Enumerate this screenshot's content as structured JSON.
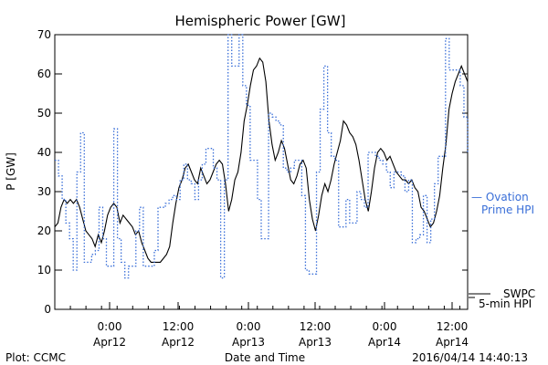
{
  "chart_data": {
    "type": "line",
    "title": "Hemispheric Power [GW]",
    "ylabel": "P [GW]",
    "xlabel": "Date and Time",
    "ylim": [
      0,
      70
    ],
    "xlim": [
      0,
      270
    ],
    "yticks": [
      0,
      10,
      20,
      30,
      40,
      50,
      60,
      70
    ],
    "xticks": [
      {
        "x": 24,
        "time": "0:00",
        "date": "Apr12"
      },
      {
        "x": 48,
        "time": "12:00",
        "date": "Apr12"
      },
      {
        "x": 72,
        "time": "0:00",
        "date": "Apr13"
      },
      {
        "x": 96,
        "time": "12:00",
        "date": "Apr13"
      },
      {
        "x": 120,
        "time": "0:00",
        "date": "Apr14"
      },
      {
        "x": 144,
        "time": "12:00",
        "date": "Apr14"
      }
    ],
    "series": [
      {
        "name": "SWPC 5-min HPI",
        "style": "solid",
        "color": "#000000",
        "points": [
          [
            0,
            21
          ],
          [
            1,
            22
          ],
          [
            2,
            26
          ],
          [
            3,
            28
          ],
          [
            4,
            27
          ],
          [
            5,
            28
          ],
          [
            6,
            27
          ],
          [
            7,
            28
          ],
          [
            8,
            26
          ],
          [
            9,
            23
          ],
          [
            10,
            20
          ],
          [
            11,
            19
          ],
          [
            12,
            18
          ],
          [
            13,
            16
          ],
          [
            14,
            19
          ],
          [
            15,
            17
          ],
          [
            16,
            20
          ],
          [
            17,
            24
          ],
          [
            18,
            26
          ],
          [
            19,
            27
          ],
          [
            20,
            26
          ],
          [
            21,
            22
          ],
          [
            22,
            24
          ],
          [
            23,
            23
          ],
          [
            24,
            22
          ],
          [
            25,
            21
          ],
          [
            26,
            19
          ],
          [
            27,
            20
          ],
          [
            28,
            17
          ],
          [
            29,
            15
          ],
          [
            30,
            13
          ],
          [
            31,
            12
          ],
          [
            32,
            12
          ],
          [
            33,
            12
          ],
          [
            34,
            12
          ],
          [
            35,
            13
          ],
          [
            36,
            14
          ],
          [
            37,
            16
          ],
          [
            38,
            22
          ],
          [
            39,
            27
          ],
          [
            40,
            31
          ],
          [
            41,
            33
          ],
          [
            42,
            36
          ],
          [
            43,
            37
          ],
          [
            44,
            35
          ],
          [
            45,
            33
          ],
          [
            46,
            32
          ],
          [
            47,
            36
          ],
          [
            48,
            34
          ],
          [
            49,
            32
          ],
          [
            50,
            33
          ],
          [
            51,
            35
          ],
          [
            52,
            37
          ],
          [
            53,
            38
          ],
          [
            54,
            37
          ],
          [
            55,
            32
          ],
          [
            56,
            25
          ],
          [
            57,
            28
          ],
          [
            58,
            33
          ],
          [
            59,
            35
          ],
          [
            60,
            40
          ],
          [
            61,
            48
          ],
          [
            62,
            52
          ],
          [
            63,
            57
          ],
          [
            64,
            61
          ],
          [
            65,
            62
          ],
          [
            66,
            64
          ],
          [
            67,
            63
          ],
          [
            68,
            58
          ],
          [
            69,
            48
          ],
          [
            70,
            42
          ],
          [
            71,
            38
          ],
          [
            72,
            40
          ],
          [
            73,
            43
          ],
          [
            74,
            41
          ],
          [
            75,
            37
          ],
          [
            76,
            33
          ],
          [
            77,
            32
          ],
          [
            78,
            34
          ],
          [
            79,
            37
          ],
          [
            80,
            38
          ],
          [
            81,
            36
          ],
          [
            82,
            28
          ],
          [
            83,
            23
          ],
          [
            84,
            20
          ],
          [
            85,
            24
          ],
          [
            86,
            29
          ],
          [
            87,
            32
          ],
          [
            88,
            30
          ],
          [
            89,
            33
          ],
          [
            90,
            37
          ],
          [
            91,
            40
          ],
          [
            92,
            43
          ],
          [
            93,
            48
          ],
          [
            94,
            47
          ],
          [
            95,
            45
          ],
          [
            96,
            44
          ],
          [
            97,
            42
          ],
          [
            98,
            38
          ],
          [
            99,
            33
          ],
          [
            100,
            28
          ],
          [
            101,
            25
          ],
          [
            102,
            30
          ],
          [
            103,
            36
          ],
          [
            104,
            40
          ],
          [
            105,
            41
          ],
          [
            106,
            40
          ],
          [
            107,
            38
          ],
          [
            108,
            39
          ],
          [
            109,
            37
          ],
          [
            110,
            35
          ],
          [
            111,
            34
          ],
          [
            112,
            33
          ],
          [
            113,
            33
          ],
          [
            114,
            32
          ],
          [
            115,
            33
          ],
          [
            116,
            31
          ],
          [
            117,
            30
          ],
          [
            118,
            26
          ],
          [
            119,
            25
          ],
          [
            120,
            23
          ],
          [
            121,
            21
          ],
          [
            122,
            22
          ],
          [
            123,
            25
          ],
          [
            124,
            29
          ],
          [
            125,
            36
          ],
          [
            126,
            42
          ],
          [
            127,
            51
          ],
          [
            128,
            55
          ],
          [
            129,
            58
          ],
          [
            130,
            60
          ],
          [
            131,
            62
          ],
          [
            132,
            60
          ],
          [
            133,
            58
          ]
        ]
      },
      {
        "name": "Ovation Prime HPI",
        "style": "dotted",
        "color": "#3a6fd8",
        "points": [
          [
            0,
            38
          ],
          [
            1,
            34
          ],
          [
            2,
            28
          ],
          [
            3,
            22
          ],
          [
            4,
            18
          ],
          [
            5,
            10
          ],
          [
            6,
            35
          ],
          [
            7,
            45
          ],
          [
            8,
            12
          ],
          [
            9,
            12
          ],
          [
            10,
            14
          ],
          [
            11,
            15
          ],
          [
            12,
            26
          ],
          [
            13,
            18
          ],
          [
            14,
            11
          ],
          [
            15,
            11
          ],
          [
            16,
            46
          ],
          [
            17,
            18
          ],
          [
            18,
            12
          ],
          [
            19,
            8
          ],
          [
            20,
            11
          ],
          [
            21,
            11
          ],
          [
            22,
            20
          ],
          [
            23,
            26
          ],
          [
            24,
            11
          ],
          [
            25,
            11
          ],
          [
            26,
            11
          ],
          [
            27,
            15
          ],
          [
            28,
            26
          ],
          [
            29,
            26
          ],
          [
            30,
            27
          ],
          [
            31,
            28
          ],
          [
            32,
            29
          ],
          [
            33,
            28
          ],
          [
            34,
            33
          ],
          [
            35,
            37
          ],
          [
            36,
            33
          ],
          [
            37,
            32
          ],
          [
            38,
            28
          ],
          [
            39,
            33
          ],
          [
            40,
            37
          ],
          [
            41,
            41
          ],
          [
            42,
            41
          ],
          [
            43,
            36
          ],
          [
            44,
            33
          ],
          [
            45,
            8
          ],
          [
            46,
            33
          ],
          [
            47,
            70
          ],
          [
            48,
            62
          ],
          [
            49,
            62
          ],
          [
            50,
            70
          ],
          [
            51,
            57
          ],
          [
            52,
            52
          ],
          [
            53,
            38
          ],
          [
            54,
            38
          ],
          [
            55,
            28
          ],
          [
            56,
            18
          ],
          [
            57,
            18
          ],
          [
            58,
            50
          ],
          [
            59,
            49
          ],
          [
            60,
            48
          ],
          [
            61,
            47
          ],
          [
            62,
            36
          ],
          [
            63,
            35
          ],
          [
            64,
            36
          ],
          [
            65,
            38
          ],
          [
            66,
            38
          ],
          [
            67,
            29
          ],
          [
            68,
            10
          ],
          [
            69,
            9
          ],
          [
            70,
            9
          ],
          [
            71,
            35
          ],
          [
            72,
            51
          ],
          [
            73,
            62
          ],
          [
            74,
            45
          ],
          [
            75,
            39
          ],
          [
            76,
            38
          ],
          [
            77,
            21
          ],
          [
            78,
            21
          ],
          [
            79,
            28
          ],
          [
            80,
            22
          ],
          [
            81,
            22
          ],
          [
            82,
            30
          ],
          [
            83,
            28
          ],
          [
            84,
            26
          ],
          [
            85,
            40
          ],
          [
            86,
            40
          ],
          [
            87,
            39
          ],
          [
            88,
            38
          ],
          [
            89,
            37
          ],
          [
            90,
            35
          ],
          [
            91,
            31
          ],
          [
            92,
            35
          ],
          [
            93,
            35
          ],
          [
            94,
            34
          ],
          [
            95,
            30
          ],
          [
            96,
            33
          ],
          [
            97,
            17
          ],
          [
            98,
            18
          ],
          [
            99,
            19
          ],
          [
            100,
            29
          ],
          [
            101,
            17
          ],
          [
            102,
            23
          ],
          [
            103,
            32
          ],
          [
            104,
            39
          ],
          [
            105,
            39
          ],
          [
            106,
            69
          ],
          [
            107,
            61
          ],
          [
            108,
            61
          ],
          [
            109,
            61
          ],
          [
            110,
            57
          ],
          [
            111,
            49
          ],
          [
            112,
            40
          ]
        ]
      }
    ],
    "legend": {
      "position": "right",
      "swpc_line1": "SWPC",
      "swpc_line2": "5-min HPI",
      "ovation_line1": "— Ovation",
      "ovation_line2": "Prime HPI"
    }
  },
  "footer": {
    "plot_credit": "Plot: CCMC",
    "timestamp": "2016/04/14 14:40:13"
  }
}
